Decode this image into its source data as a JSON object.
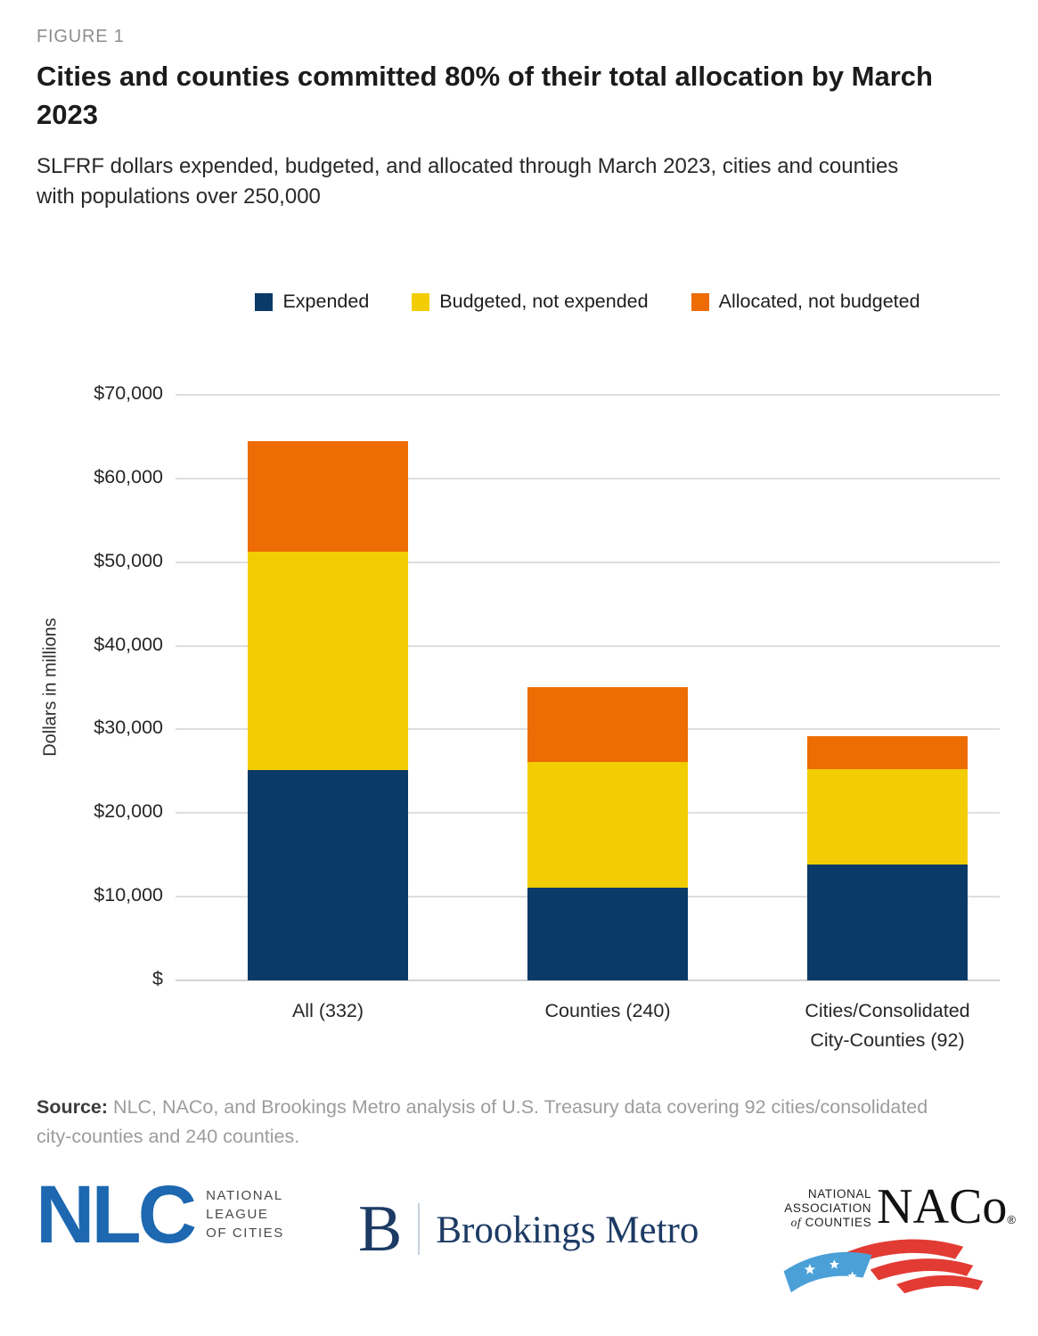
{
  "header": {
    "figure_label": "FIGURE 1",
    "title": "Cities and counties committed 80% of their total allocation by March 2023",
    "subtitle": "SLFRF dollars expended, budgeted, and allocated through March 2023, cities and counties with populations over 250,000"
  },
  "chart_data": {
    "type": "bar",
    "stacked": true,
    "title": "Cities and counties committed 80% of their total allocation by March 2023",
    "xlabel": "",
    "ylabel": "Dollars in millions",
    "categories": [
      "All (332)",
      "Counties (240)",
      "Cities/Consolidated\nCity-Counties (92)"
    ],
    "series": [
      {
        "name": "Expended",
        "color": "#0a3a67",
        "values": [
          25100,
          11100,
          13900
        ]
      },
      {
        "name": "Budgeted, not expended",
        "color": "#f2cd03",
        "values": [
          26100,
          15000,
          11300
        ]
      },
      {
        "name": "Allocated, not budgeted",
        "color": "#ee6c04",
        "values": [
          13300,
          9000,
          4000
        ]
      }
    ],
    "totals": [
      64500,
      35100,
      29200
    ],
    "ylim": [
      0,
      70000
    ],
    "ytick_step": 10000,
    "ytick_labels": [
      "$",
      "$10,000",
      "$20,000",
      "$30,000",
      "$40,000",
      "$50,000",
      "$60,000",
      "$70,000"
    ],
    "grid": true,
    "legend_position": "top"
  },
  "source": {
    "label": "Source:",
    "text": " NLC, NACo, and Brookings Metro analysis of U.S. Treasury data covering 92 cities/consolidated city-counties and 240 counties."
  },
  "logos": {
    "nlc": {
      "acronym": "NLC",
      "line1": "NATIONAL",
      "line2": "LEAGUE",
      "line3": "OF CITIES",
      "blue": "#1d68b0"
    },
    "brookings": {
      "initial": "B",
      "name": "Brookings Metro",
      "navy": "#1c3a63"
    },
    "naco": {
      "line1": "NATIONAL",
      "line2": "ASSOCIATION",
      "line3_italic": "of",
      "line3": " COUNTIES",
      "acronym": "NACo",
      "reg": "®",
      "red": "#e23b34",
      "blue": "#4ba0d8"
    }
  }
}
